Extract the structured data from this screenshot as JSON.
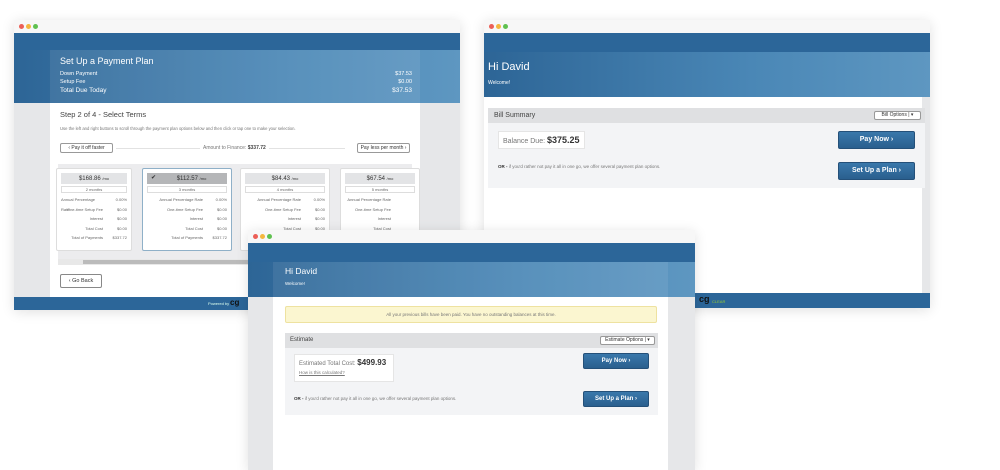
{
  "plan_window": {
    "title": "Set Up a Payment Plan",
    "summary": [
      {
        "label": "Down Payment",
        "value": "$37.53"
      },
      {
        "label": "Setup Fee",
        "value": "$0.00"
      },
      {
        "label": "Total Due Today",
        "value": "$37.53"
      }
    ],
    "step_title": "Step 2 of 4 - Select Terms",
    "instructions": "Use the left and right buttons to scroll through the payment plan options below and then click or tap one to make your selection.",
    "faster_label": "Pay it off faster",
    "less_label": "Pay less per month",
    "amount_label": "Amount to Finance:",
    "amount_value": "$337.72",
    "row_labels": [
      "Annual Percentage Rate",
      "One-time Setup Fee",
      "Interest",
      "Total Cost",
      "Total of Payments"
    ],
    "cards": [
      {
        "price": "$168.86",
        "unit": "/mo",
        "term": "2 months",
        "values": [
          "0.00%",
          "$0.00",
          "$0.00",
          "$0.00",
          "$337.72"
        ],
        "selected": false
      },
      {
        "price": "$112.57",
        "unit": "/mo",
        "term": "3 months",
        "values": [
          "0.00%",
          "$0.00",
          "$0.00",
          "$0.00",
          "$337.72"
        ],
        "selected": true
      },
      {
        "price": "$84.43",
        "unit": "/mo",
        "term": "4 months",
        "values": [
          "0.00%",
          "$0.00",
          "$0.00",
          "$0.00",
          ""
        ],
        "selected": false
      },
      {
        "price": "$67.54",
        "unit": "/mo",
        "term": "5 months",
        "values": [
          "",
          "",
          "",
          "",
          ""
        ],
        "selected": false
      }
    ],
    "go_back": "Go Back",
    "powered_by": "Powered by"
  },
  "bill_window": {
    "greeting": "Hi David",
    "welcome": "Welcome!",
    "panel_title": "Bill Summary",
    "options": "Bill Options",
    "balance_label": "Balance Due:",
    "balance_value": "$375.25",
    "pay_now": "Pay Now ›",
    "setup_plan": "Set Up a Plan ›",
    "or": "OR -",
    "or_text": "if you'd rather not pay it all in one go, we offer several payment plan options.",
    "brand": "CLEAR"
  },
  "estimate_window": {
    "greeting": "Hi David",
    "welcome": "Welcome!",
    "notice": "All your previous bills have been paid. You have no outstanding balances at this time.",
    "panel_title": "Estimate",
    "options": "Estimate Options",
    "cost_label": "Estimated Total Cost:",
    "cost_value": "$499.93",
    "how": "How is this calculated?",
    "pay_now": "Pay Now ›",
    "setup_plan": "Set Up a Plan ›",
    "or": "OR -",
    "or_text": "if you'd rather not pay it all in one go, we offer several payment plan options."
  }
}
